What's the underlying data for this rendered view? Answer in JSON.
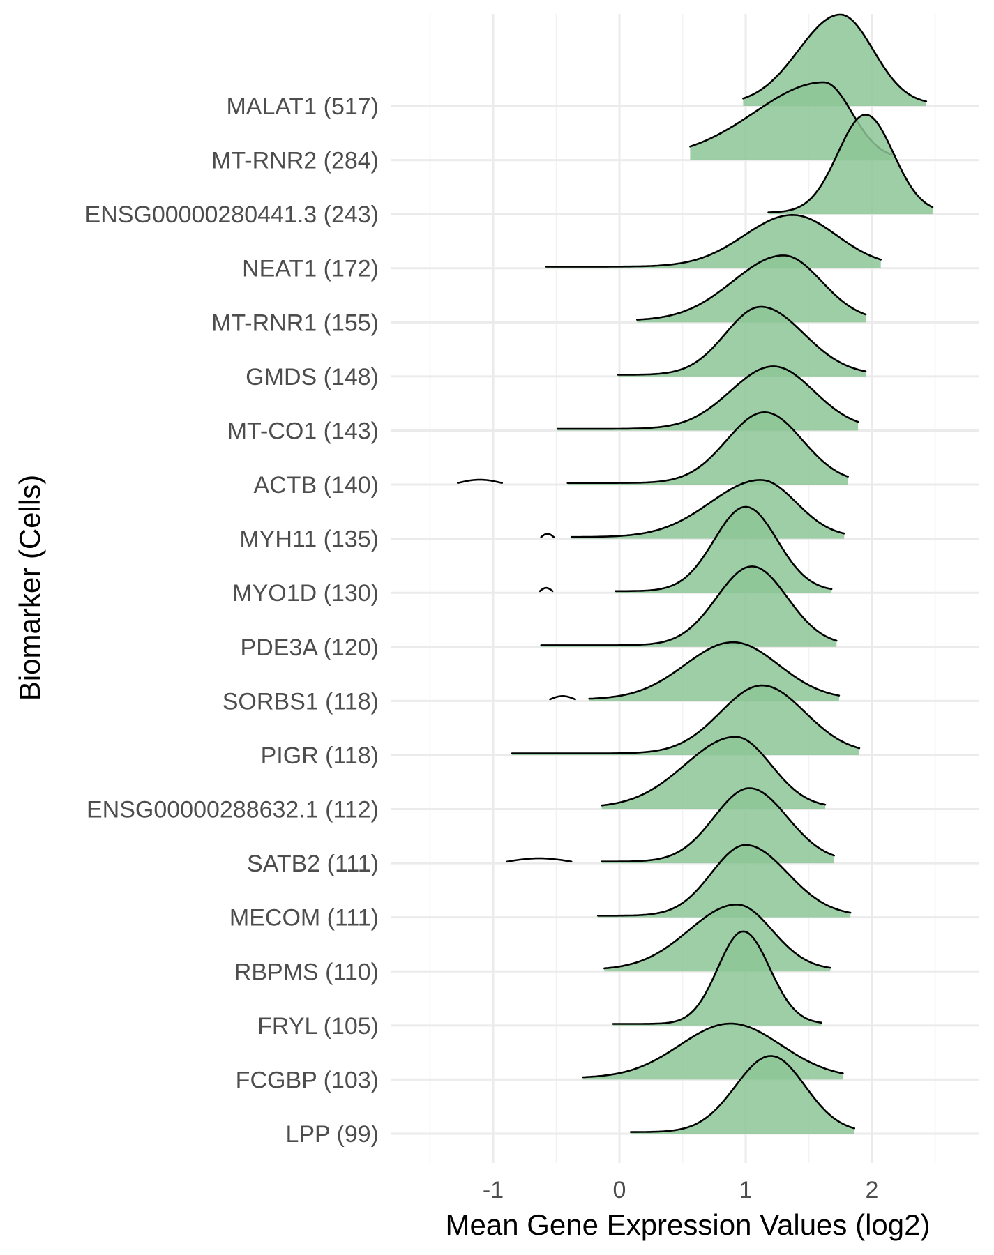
{
  "chart_data": {
    "type": "ridgeline",
    "xlabel": "Mean Gene Expression Values (log2)",
    "ylabel": "Biomarker (Cells)",
    "xlim": [
      -1.8,
      2.9
    ],
    "x_ticks": [
      -1,
      0,
      1,
      2
    ],
    "x_tick_labels": [
      "-1",
      "0",
      "1",
      "2"
    ],
    "x_minor_ticks": [
      -1.5,
      -0.5,
      0.5,
      1.5,
      2.5
    ],
    "grid": true,
    "fill_color": "#8dc596",
    "line_color": "#000000",
    "series": [
      {
        "label": "MALAT1 (517)",
        "range": [
          0.98,
          2.43
        ],
        "peak": 1.75,
        "left_sd": 0.33,
        "right_sd": 0.26,
        "height": 1.65
      },
      {
        "label": "MT-RNR2 (284)",
        "range": [
          0.56,
          2.18
        ],
        "peak": 1.62,
        "left_sd": 0.55,
        "right_sd": 0.22,
        "height": 1.4
      },
      {
        "label": "ENSG00000280441.3 (243)",
        "range": [
          1.18,
          2.48
        ],
        "peak": 1.95,
        "left_sd": 0.22,
        "right_sd": 0.22,
        "height": 1.8
      },
      {
        "label": "NEAT1 (172)",
        "range": [
          -0.58,
          2.07
        ],
        "peak": 1.37,
        "left_sd": 0.38,
        "right_sd": 0.35,
        "height": 0.95
      },
      {
        "label": "MT-RNR1 (155)",
        "range": [
          0.14,
          1.95
        ],
        "peak": 1.3,
        "left_sd": 0.4,
        "right_sd": 0.3,
        "height": 1.2
      },
      {
        "label": "GMDS (148)",
        "range": [
          -0.01,
          1.95
        ],
        "peak": 1.12,
        "left_sd": 0.28,
        "right_sd": 0.34,
        "height": 1.25
      },
      {
        "label": "MT-CO1 (143)",
        "range": [
          -0.49,
          1.89
        ],
        "peak": 1.22,
        "left_sd": 0.34,
        "right_sd": 0.32,
        "height": 1.15
      },
      {
        "label": "ACTB (140)",
        "range": [
          -0.41,
          1.81
        ],
        "peak": 1.15,
        "left_sd": 0.3,
        "right_sd": 0.3,
        "height": 1.3
      },
      {
        "label": "MYH11 (135)",
        "range": [
          -0.38,
          1.78
        ],
        "peak": 1.12,
        "left_sd": 0.4,
        "right_sd": 0.28,
        "height": 1.05
      },
      {
        "label": "MYO1D (130)",
        "range": [
          -0.03,
          1.68
        ],
        "peak": 1.0,
        "left_sd": 0.25,
        "right_sd": 0.25,
        "height": 1.55
      },
      {
        "label": "PDE3A (120)",
        "range": [
          -0.62,
          1.72
        ],
        "peak": 1.05,
        "left_sd": 0.28,
        "right_sd": 0.28,
        "height": 1.45
      },
      {
        "label": "SORBS1 (118)",
        "range": [
          -0.24,
          1.74
        ],
        "peak": 0.9,
        "left_sd": 0.38,
        "right_sd": 0.36,
        "height": 1.05
      },
      {
        "label": "PIGR (118)",
        "range": [
          -0.85,
          1.9
        ],
        "peak": 1.13,
        "left_sd": 0.33,
        "right_sd": 0.34,
        "height": 1.25
      },
      {
        "label": "ENSG00000288632.1 (112)",
        "range": [
          -0.14,
          1.63
        ],
        "peak": 0.92,
        "left_sd": 0.4,
        "right_sd": 0.28,
        "height": 1.3
      },
      {
        "label": "SATB2 (111)",
        "range": [
          -0.14,
          1.7
        ],
        "peak": 1.03,
        "left_sd": 0.28,
        "right_sd": 0.3,
        "height": 1.35
      },
      {
        "label": "MECOM (111)",
        "range": [
          -0.17,
          1.83
        ],
        "peak": 1.0,
        "left_sd": 0.27,
        "right_sd": 0.33,
        "height": 1.3
      },
      {
        "label": "RBPMS (110)",
        "range": [
          -0.12,
          1.67
        ],
        "peak": 0.93,
        "left_sd": 0.38,
        "right_sd": 0.28,
        "height": 1.2
      },
      {
        "label": "FRYL (105)",
        "range": [
          -0.05,
          1.6
        ],
        "peak": 0.98,
        "left_sd": 0.2,
        "right_sd": 0.21,
        "height": 1.7
      },
      {
        "label": "FCGBP (103)",
        "range": [
          -0.29,
          1.77
        ],
        "peak": 0.88,
        "left_sd": 0.4,
        "right_sd": 0.4,
        "height": 1.0
      },
      {
        "label": "LPP (99)",
        "range": [
          0.09,
          1.86
        ],
        "peak": 1.2,
        "left_sd": 0.28,
        "right_sd": 0.27,
        "height": 1.4
      }
    ],
    "fragments": [
      {
        "series": "ACTB (140)",
        "range": [
          -1.28,
          -0.93
        ]
      },
      {
        "series": "MYH11 (135)",
        "range": [
          -0.62,
          -0.52
        ]
      },
      {
        "series": "MYO1D (130)",
        "range": [
          -0.63,
          -0.53
        ]
      },
      {
        "series": "SORBS1 (118)",
        "range": [
          -0.55,
          -0.35
        ]
      },
      {
        "series": "SATB2 (111)",
        "range": [
          -0.89,
          -0.38
        ]
      }
    ]
  }
}
